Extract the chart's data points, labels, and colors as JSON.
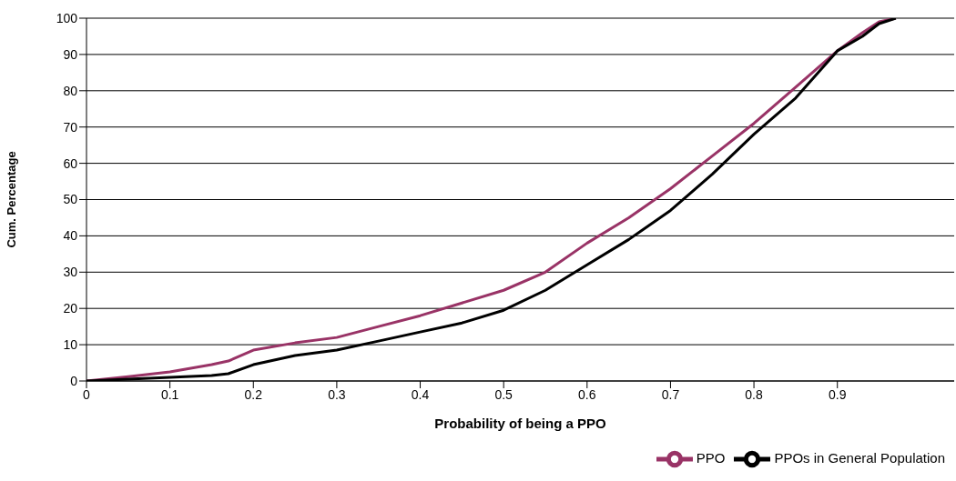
{
  "chart_data": {
    "type": "line",
    "xlabel": "Probability of being a PPO",
    "ylabel": "Cum. Percentage",
    "xlim": [
      0,
      1.04
    ],
    "xticks": [
      0,
      0.1,
      0.2,
      0.3,
      0.4,
      0.5,
      0.6,
      0.7,
      0.8,
      0.9
    ],
    "ylim": [
      0,
      100
    ],
    "yticks": [
      0,
      10,
      20,
      30,
      40,
      50,
      60,
      70,
      80,
      90,
      100
    ],
    "grid": "y",
    "legend": "bottom right",
    "marker": "none",
    "line_style": "solid",
    "x": [
      0,
      0.05,
      0.1,
      0.15,
      0.17,
      0.2,
      0.25,
      0.3,
      0.35,
      0.4,
      0.45,
      0.5,
      0.55,
      0.6,
      0.65,
      0.7,
      0.75,
      0.8,
      0.85,
      0.9,
      0.93,
      0.95,
      0.97
    ],
    "series": [
      {
        "name": "PPO",
        "color": "#993366",
        "values": [
          0,
          1.2,
          2.5,
          4.5,
          5.5,
          8.5,
          10.5,
          12,
          15,
          18,
          21.5,
          25,
          30,
          38,
          45,
          53,
          62,
          71,
          81,
          91,
          96,
          99,
          100
        ]
      },
      {
        "name": "PPOs in General Population",
        "color": "#000000",
        "values": [
          0,
          0.5,
          1,
          1.5,
          2,
          4.5,
          7,
          8.5,
          11,
          13.5,
          16,
          19.5,
          25,
          32,
          39,
          47,
          57,
          68,
          78,
          91,
          95,
          98.5,
          100
        ]
      }
    ]
  }
}
